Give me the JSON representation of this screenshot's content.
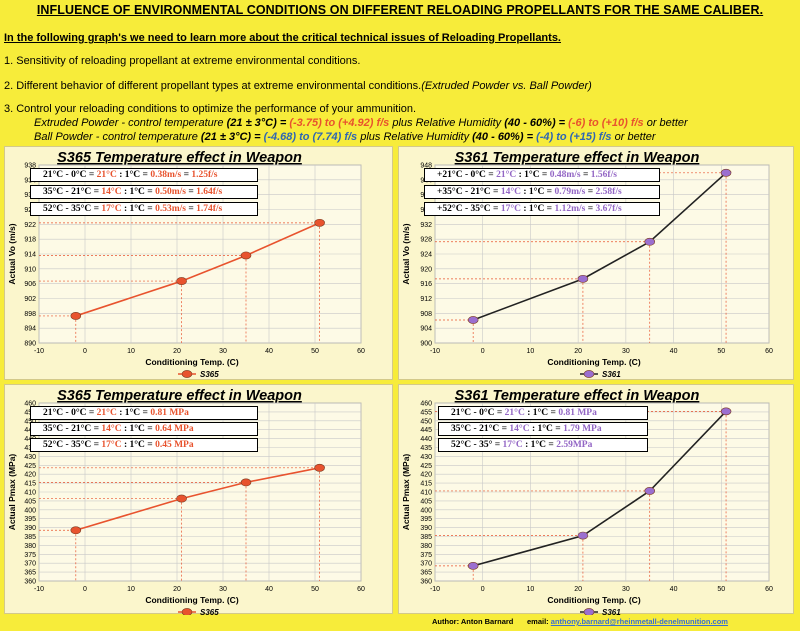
{
  "header": {
    "title": "INFLUENCE OF ENVIRONMENTAL CONDITIONS ON DIFFERENT RELOADING PROPELLANTS FOR THE SAME CALIBER.",
    "intro": "In the following graph's we need to learn more about the critical technical issues of Reloading Propellants.",
    "point1": "1. Sensitivity of reloading propellant at extreme environmental conditions.",
    "point2": "2. Different behavior of different propellant types at extreme environmental conditions.",
    "point2_italic": "(Extruded Powder vs. Ball Powder)",
    "point3": "3. Control your reloading conditions to optimize the performance of your ammunition.",
    "extruded": {
      "label": "Extruded Powder - control temperature",
      "temp": "(21 ± 3°C)",
      "eq": "=",
      "range": "(-3.75) to (+4.92) f/s",
      "plus": "plus Relative Humidity",
      "humidity": "(40 - 60%)",
      "eq2": "=",
      "range2": "(-6) to (+10) f/s",
      "better": "or better"
    },
    "ball": {
      "label": "Ball Powder - control temperature",
      "temp": "(21 ± 3°C)",
      "eq": "=",
      "range": "(-4.68) to (7.74) f/s",
      "plus": "plus Relative Humidity",
      "humidity": "(40 - 60%)",
      "eq2": "=",
      "range2": "(-4) to (+15) f/s",
      "better": "or better"
    }
  },
  "colors": {
    "background": "#f7ec3a",
    "panel": "#fbf6cc",
    "s365": "#e8532e",
    "s361": "#9b6fd0",
    "s361_line": "#222222",
    "grid": "#c8c8c8",
    "drop": "#e8532e"
  },
  "boxes": {
    "tl": [
      {
        "a": "21°C - 0°C = ",
        "b": "21°C",
        "c": " : 1°C = ",
        "d": "0.38m/s",
        "e": " = ",
        "f": "1.25f/s"
      },
      {
        "a": "35°C - 21°C = ",
        "b": "14°C",
        "c": " : 1°C = ",
        "d": "0.50m/s",
        "e": " = ",
        "f": "1.64f/s"
      },
      {
        "a": "52°C - 35°C = ",
        "b": "17°C",
        "c": " : 1°C = ",
        "d": "0.53m/s",
        "e": " = ",
        "f": "1.74f/s"
      }
    ],
    "tr": [
      {
        "a": "+21°C - 0°C = ",
        "b": "21°C",
        "c": " : 1°C = ",
        "d": "0.48m/s",
        "e": " = ",
        "f": "1.56f/s"
      },
      {
        "a": "+35°C - 21°C = ",
        "b": "14°C",
        "c": " : 1°C = ",
        "d": "0.79m/s",
        "e": " = ",
        "f": "2.58f/s"
      },
      {
        "a": "+52°C - 35°C = ",
        "b": "17°C",
        "c": " : 1°C = ",
        "d": "1.12m/s",
        "e": " = ",
        "f": "3.67f/s"
      }
    ],
    "bl": [
      {
        "a": "21°C - 0°C = ",
        "b": "21°C",
        "c": " : 1°C = ",
        "d": "0.81 MPa"
      },
      {
        "a": "35°C - 21°C = ",
        "b": "14°C",
        "c": " : 1°C = ",
        "d": "0.64 MPa"
      },
      {
        "a": "52°C - 35°C = ",
        "b": "17°C",
        "c": " : 1°C = ",
        "d": "0.45 MPa"
      }
    ],
    "br": [
      {
        "a": "21°C - 0°C = ",
        "b": "21°C",
        "c": " : 1°C = ",
        "d": "0.81 MPa"
      },
      {
        "a": "35°C - 21°C = ",
        "b": "14°C",
        "c": " : 1°C = ",
        "d": "1.79 MPa"
      },
      {
        "a": "52°C - 35° = ",
        "b": "17°C",
        "c": " : 1°C = ",
        "d": "2.59MPa"
      }
    ]
  },
  "footer": {
    "author": "Author: Anton Barnard",
    "email_label": "email:",
    "email": "anthony.barnard@rheinmetall-denelmunition.com"
  },
  "chart_data": [
    {
      "type": "line",
      "title": "S365 Temperature effect in Weapon",
      "xlabel": "Conditioning Temp. (C)",
      "ylabel": "Actual Vo (m/s)",
      "xlim": [
        -10,
        60
      ],
      "ylim": [
        890,
        938
      ],
      "xticks": [
        -10,
        0,
        10,
        20,
        30,
        40,
        50,
        60
      ],
      "yticks": [
        890,
        894,
        898,
        902,
        906,
        910,
        914,
        918,
        922,
        926,
        930,
        934,
        938
      ],
      "series": [
        {
          "name": "S365",
          "x": [
            -2,
            21,
            35,
            51
          ],
          "y": [
            897.3,
            906.7,
            913.6,
            922.4
          ]
        }
      ],
      "legend": "bottom-center",
      "grid": true
    },
    {
      "type": "line",
      "title": "S361 Temperature effect in Weapon",
      "xlabel": "Conditioning Temp. (C)",
      "ylabel": "Actual Vo (m/s)",
      "xlim": [
        -10,
        60
      ],
      "ylim": [
        900,
        948
      ],
      "xticks": [
        -10,
        0,
        10,
        20,
        30,
        40,
        50,
        60
      ],
      "yticks": [
        900,
        904,
        908,
        912,
        916,
        920,
        924,
        928,
        932,
        936,
        940,
        944,
        948
      ],
      "series": [
        {
          "name": "S361",
          "x": [
            -2,
            21,
            35,
            51
          ],
          "y": [
            906.2,
            917.3,
            927.3,
            945.9
          ]
        }
      ],
      "legend": "bottom-center",
      "grid": true
    },
    {
      "type": "line",
      "title": "S365 Temperature effect in Weapon",
      "xlabel": "Conditioning Temp. (C)",
      "ylabel": "Actual Pmax (MPa)",
      "xlim": [
        -10,
        60
      ],
      "ylim": [
        360,
        460
      ],
      "xticks": [
        -10,
        0,
        10,
        20,
        30,
        40,
        50,
        60
      ],
      "yticks": [
        360,
        365,
        370,
        375,
        380,
        385,
        390,
        395,
        400,
        405,
        410,
        415,
        420,
        425,
        430,
        435,
        440,
        445,
        450,
        455,
        460
      ],
      "series": [
        {
          "name": "S365",
          "x": [
            -2,
            21,
            35,
            51
          ],
          "y": [
            388.5,
            406.3,
            415.4,
            423.6
          ]
        }
      ],
      "legend": "bottom-center",
      "grid": true
    },
    {
      "type": "line",
      "title": "S361 Temperature effect in Weapon",
      "xlabel": "Conditioning Temp. (C)",
      "ylabel": "Actual Pmax (MPa)",
      "xlim": [
        -10,
        60
      ],
      "ylim": [
        360,
        460
      ],
      "xticks": [
        -10,
        0,
        10,
        20,
        30,
        40,
        50,
        60
      ],
      "yticks": [
        360,
        365,
        370,
        375,
        380,
        385,
        390,
        395,
        400,
        405,
        410,
        415,
        420,
        425,
        430,
        435,
        440,
        445,
        450,
        455,
        460
      ],
      "series": [
        {
          "name": "S361",
          "x": [
            -2,
            21,
            35,
            51
          ],
          "y": [
            368.5,
            385.5,
            410.6,
            455.3
          ]
        }
      ],
      "legend": "bottom-center",
      "grid": true
    }
  ]
}
